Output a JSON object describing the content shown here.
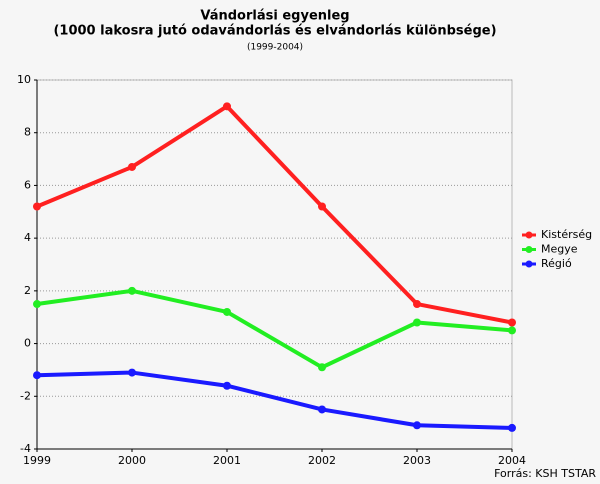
{
  "chart_data": {
    "type": "line",
    "title": "Vándorlási egyenleg",
    "subtitle": "(1000 lakosra jutó odavándorlás és elvándorlás különbsége)",
    "period": "(1999-2004)",
    "source": "Forrás: KSH TSTAR",
    "categories": [
      "1999",
      "2000",
      "2001",
      "2002",
      "2003",
      "2004"
    ],
    "series": [
      {
        "name": "Kistérség",
        "color": "#ff2020",
        "values": [
          5.2,
          6.7,
          9.0,
          5.2,
          1.5,
          0.8
        ]
      },
      {
        "name": "Megye",
        "color": "#22ee22",
        "values": [
          1.5,
          2.0,
          1.2,
          -0.9,
          0.8,
          0.5
        ]
      },
      {
        "name": "Régió",
        "color": "#1a1aff",
        "values": [
          -1.2,
          -1.1,
          -1.6,
          -2.5,
          -3.1,
          -3.2
        ]
      }
    ],
    "ylim": [
      -4,
      10
    ],
    "yticks": [
      -4,
      -2,
      0,
      2,
      4,
      6,
      8,
      10
    ],
    "grid": true,
    "legend": "right"
  }
}
